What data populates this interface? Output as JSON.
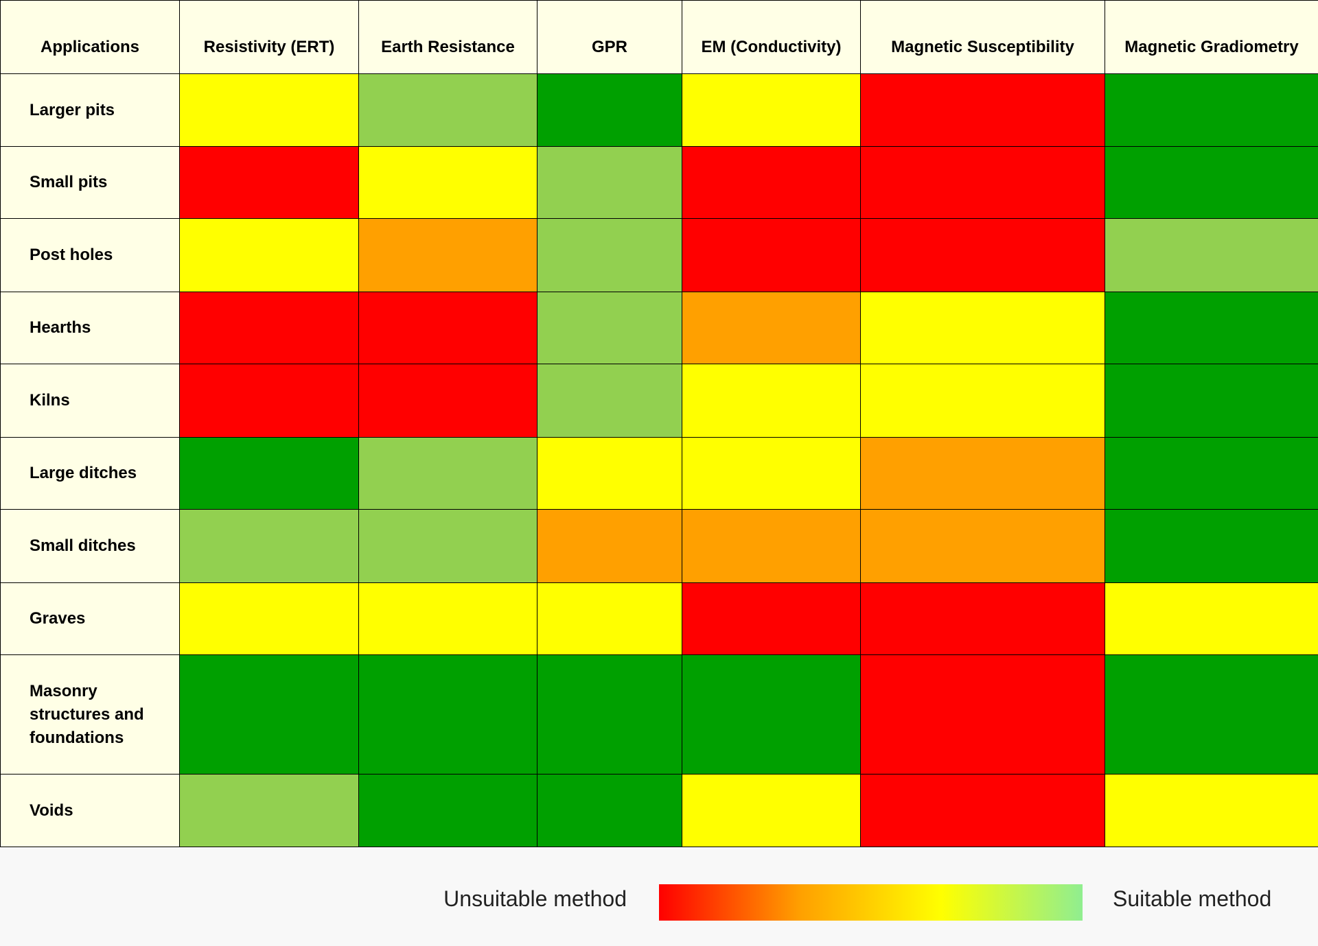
{
  "table": {
    "columns": [
      "Applications",
      "Resistivity (ERT)",
      "Earth Resistance",
      "GPR",
      "EM (Conductivity)",
      "Magnetic Susceptibility",
      "Magnetic Gradiometry"
    ],
    "rows": [
      {
        "label": "Larger pits",
        "cells": [
          "#ffff00",
          "#92d050",
          "#00a000",
          "#ffff00",
          "#ff0000",
          "#00a000"
        ]
      },
      {
        "label": "Small pits",
        "cells": [
          "#ff0000",
          "#ffff00",
          "#92d050",
          "#ff0000",
          "#ff0000",
          "#00a000"
        ]
      },
      {
        "label": "Post holes",
        "cells": [
          "#ffff00",
          "#ffa000",
          "#92d050",
          "#ff0000",
          "#ff0000",
          "#92d050"
        ]
      },
      {
        "label": "Hearths",
        "cells": [
          "#ff0000",
          "#ff0000",
          "#92d050",
          "#ffa000",
          "#ffff00",
          "#00a000"
        ]
      },
      {
        "label": "Kilns",
        "cells": [
          "#ff0000",
          "#ff0000",
          "#92d050",
          "#ffff00",
          "#ffff00",
          "#00a000"
        ]
      },
      {
        "label": "Large ditches",
        "cells": [
          "#00a000",
          "#92d050",
          "#ffff00",
          "#ffff00",
          "#ffa000",
          "#00a000"
        ]
      },
      {
        "label": "Small ditches",
        "cells": [
          "#92d050",
          "#92d050",
          "#ffa000",
          "#ffa000",
          "#ffa000",
          "#00a000"
        ]
      },
      {
        "label": "Graves",
        "cells": [
          "#ffff00",
          "#ffff00",
          "#ffff00",
          "#ff0000",
          "#ff0000",
          "#ffff00"
        ]
      },
      {
        "label": "Masonry structures and foundations",
        "cells": [
          "#00a000",
          "#00a000",
          "#00a000",
          "#00a000",
          "#ff0000",
          "#00a000"
        ]
      },
      {
        "label": "Voids",
        "cells": [
          "#92d050",
          "#00a000",
          "#00a000",
          "#ffff00",
          "#ff0000",
          "#ffff00"
        ]
      }
    ]
  },
  "legend": {
    "low_label": "Unsuitable method",
    "high_label": "Suitable method",
    "colors": [
      "#ff0000",
      "#ffa000",
      "#ffff00",
      "#90ee90"
    ]
  }
}
